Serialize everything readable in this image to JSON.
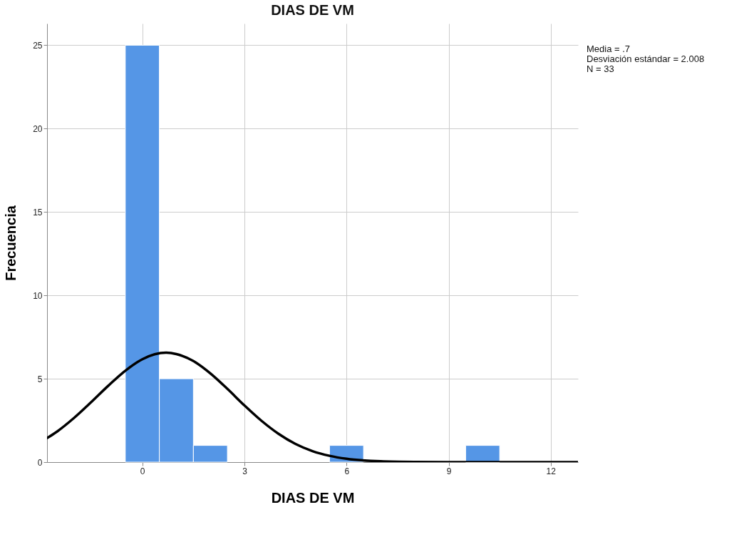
{
  "chart_data": {
    "type": "histogram",
    "title": "DIAS DE VM",
    "xlabel": "DIAS DE VM",
    "ylabel": "Frecuencia",
    "bins": [
      -0.5,
      0.5,
      1.5,
      2.5,
      3.5,
      4.5,
      5.5,
      6.5,
      7.5,
      8.5,
      9.5,
      10.5
    ],
    "values": [
      25,
      5,
      1,
      0,
      0,
      0,
      1,
      0,
      0,
      0,
      1
    ],
    "color": "#5596e6",
    "series": [
      {
        "type": "line",
        "color": "#000000",
        "x": [
          -2.8,
          -2.5,
          -2,
          -1.5,
          -1,
          -0.5,
          0,
          0.7,
          1,
          1.5,
          2,
          2.5,
          3,
          3.5,
          4,
          4.5,
          5,
          5.5,
          6,
          7,
          8,
          9,
          10,
          11,
          12,
          12.8
        ],
        "values": [
          1.44,
          1.84,
          2.66,
          3.6,
          4.58,
          5.48,
          6.17,
          6.56,
          6.48,
          6.06,
          5.32,
          4.39,
          3.4,
          2.48,
          1.7,
          1.09,
          0.66,
          0.38,
          0.2,
          0.05,
          0.01,
          0,
          0,
          0,
          0,
          0
        ]
      }
    ],
    "xlim": [
      -2.8,
      12.8
    ],
    "xticks": [
      0,
      3,
      6,
      9,
      12
    ],
    "ylim": [
      0,
      26.3
    ],
    "yticks": [
      0,
      5,
      10,
      15,
      20,
      25
    ],
    "grid": true,
    "annotations": [
      "Media = .7",
      "Desviación estándar = 2.008",
      "N = 33"
    ]
  }
}
